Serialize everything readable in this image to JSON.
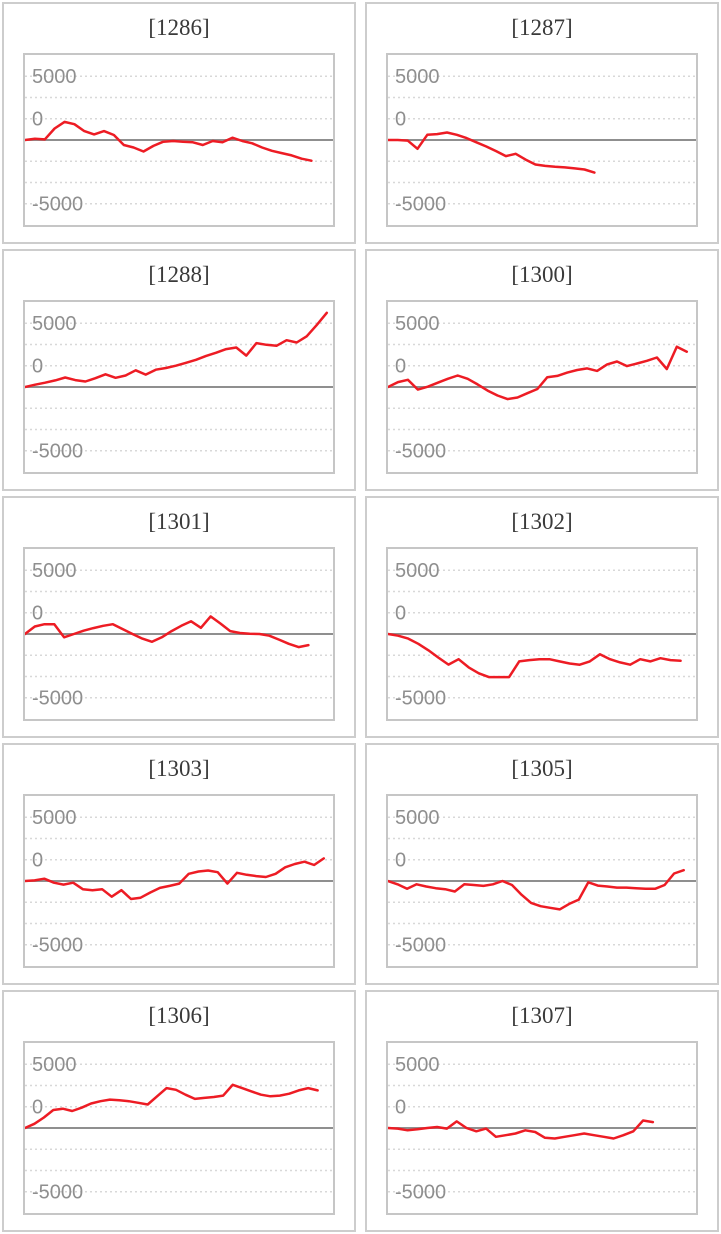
{
  "page": {
    "background": "#ffffff"
  },
  "colors": {
    "series_line": "#ed1c24",
    "zero_line": "#8f8f8f",
    "gridline": "#d8d8d8",
    "tick_label": "#8f8f8f",
    "title_text": "#3a3a3a",
    "panel_border": "#cdcdcd",
    "chart_border": "#c6c6c6"
  },
  "chart_data": [
    {
      "type": "line",
      "title": "[1286]",
      "ylabel": "",
      "xlabel": "",
      "y_ticks": [
        "5000",
        "0",
        "-5000"
      ],
      "y_tick_values": [
        5000,
        0,
        -5000
      ],
      "ylim": [
        -6667,
        6667
      ],
      "grid": "dotted-horizontal",
      "zero_baseline": true,
      "legend": "none",
      "x_span": 0.93,
      "values": [
        0,
        100,
        50,
        900,
        1420,
        1240,
        700,
        440,
        700,
        390,
        -390,
        -590,
        -900,
        -460,
        -130,
        -80,
        -130,
        -180,
        -390,
        -80,
        -180,
        180,
        -80,
        -260,
        -590,
        -850,
        -1030,
        -1210,
        -1470,
        -1620
      ]
    },
    {
      "type": "line",
      "title": "[1287]",
      "ylabel": "",
      "xlabel": "",
      "y_ticks": [
        "5000",
        "0",
        "-5000"
      ],
      "y_tick_values": [
        5000,
        0,
        -5000
      ],
      "ylim": [
        -6667,
        6667
      ],
      "grid": "dotted-horizontal",
      "zero_baseline": true,
      "legend": "none",
      "x_span": 0.67,
      "values": [
        0,
        0,
        -50,
        -690,
        410,
        460,
        590,
        410,
        150,
        -180,
        -510,
        -870,
        -1260,
        -1080,
        -1540,
        -1920,
        -2030,
        -2100,
        -2150,
        -2230,
        -2310,
        -2560
      ]
    },
    {
      "type": "line",
      "title": "[1288]",
      "ylabel": "",
      "xlabel": "",
      "y_ticks": [
        "5000",
        "0",
        "-5000"
      ],
      "y_tick_values": [
        5000,
        0,
        -5000
      ],
      "ylim": [
        -6667,
        6667
      ],
      "grid": "dotted-horizontal",
      "zero_baseline": true,
      "legend": "none",
      "x_span": 0.98,
      "values": [
        0,
        180,
        335,
        515,
        745,
        540,
        435,
        690,
        1000,
        720,
        900,
        1310,
        975,
        1360,
        1490,
        1670,
        1900,
        2130,
        2440,
        2690,
        2975,
        3100,
        2460,
        3440,
        3310,
        3230,
        3670,
        3490,
        3975,
        4870,
        5820
      ]
    },
    {
      "type": "line",
      "title": "[1300]",
      "ylabel": "",
      "xlabel": "",
      "y_ticks": [
        "5000",
        "0",
        "-5000"
      ],
      "y_tick_values": [
        5000,
        0,
        -5000
      ],
      "ylim": [
        -6667,
        6667
      ],
      "grid": "dotted-horizontal",
      "zero_baseline": true,
      "legend": "none",
      "x_span": 0.97,
      "values": [
        0,
        385,
        565,
        -205,
        25,
        335,
        640,
        900,
        640,
        205,
        -280,
        -665,
        -950,
        -820,
        -490,
        -155,
        770,
        870,
        1130,
        1330,
        1460,
        1260,
        1770,
        2000,
        1640,
        1845,
        2055,
        2310,
        1410,
        3160,
        2770
      ]
    },
    {
      "type": "line",
      "title": "[1301]",
      "ylabel": "",
      "xlabel": "",
      "y_ticks": [
        "5000",
        "0",
        "-5000"
      ],
      "y_tick_values": [
        5000,
        0,
        -5000
      ],
      "ylim": [
        -6667,
        6667
      ],
      "grid": "dotted-horizontal",
      "zero_baseline": true,
      "legend": "none",
      "x_span": 0.92,
      "values": [
        0,
        590,
        770,
        770,
        -260,
        0,
        255,
        460,
        640,
        770,
        385,
        0,
        -360,
        -615,
        -260,
        230,
        640,
        1000,
        490,
        1380,
        820,
        230,
        80,
        25,
        0,
        -130,
        -440,
        -770,
        -1030,
        -870
      ]
    },
    {
      "type": "line",
      "title": "[1302]",
      "ylabel": "",
      "xlabel": "",
      "y_ticks": [
        "5000",
        "0",
        "-5000"
      ],
      "y_tick_values": [
        5000,
        0,
        -5000
      ],
      "ylim": [
        -6667,
        6667
      ],
      "grid": "dotted-horizontal",
      "zero_baseline": true,
      "legend": "none",
      "x_span": 0.95,
      "values": [
        0,
        -130,
        -360,
        -770,
        -1280,
        -1850,
        -2400,
        -1980,
        -2620,
        -3080,
        -3380,
        -3380,
        -3380,
        -2150,
        -2050,
        -1980,
        -1980,
        -2150,
        -2310,
        -2410,
        -2150,
        -1590,
        -1980,
        -2230,
        -2410,
        -1980,
        -2150,
        -1900,
        -2050,
        -2100
      ]
    },
    {
      "type": "line",
      "title": "[1303]",
      "ylabel": "",
      "xlabel": "",
      "y_ticks": [
        "5000",
        "0",
        "-5000"
      ],
      "y_tick_values": [
        5000,
        0,
        -5000
      ],
      "ylim": [
        -6667,
        6667
      ],
      "grid": "dotted-horizontal",
      "zero_baseline": true,
      "legend": "none",
      "x_span": 0.97,
      "values": [
        0,
        50,
        180,
        -130,
        -280,
        -130,
        -640,
        -720,
        -640,
        -1230,
        -720,
        -1410,
        -1310,
        -900,
        -540,
        -385,
        -205,
        565,
        745,
        820,
        690,
        -205,
        640,
        485,
        385,
        310,
        565,
        1075,
        1330,
        1510,
        1255,
        1770
      ]
    },
    {
      "type": "line",
      "title": "[1305]",
      "ylabel": "",
      "xlabel": "",
      "y_ticks": [
        "5000",
        "0",
        "-5000"
      ],
      "y_tick_values": [
        5000,
        0,
        -5000
      ],
      "ylim": [
        -6667,
        6667
      ],
      "grid": "dotted-horizontal",
      "zero_baseline": true,
      "legend": "none",
      "x_span": 0.96,
      "values": [
        0,
        -255,
        -615,
        -255,
        -435,
        -565,
        -640,
        -820,
        -255,
        -310,
        -385,
        -255,
        0,
        -310,
        -1075,
        -1720,
        -1975,
        -2100,
        -2230,
        -1795,
        -1460,
        -100,
        -360,
        -435,
        -515,
        -515,
        -565,
        -615,
        -615,
        -310,
        590,
        845
      ]
    },
    {
      "type": "line",
      "title": "[1306]",
      "ylabel": "",
      "xlabel": "",
      "y_ticks": [
        "5000",
        "0",
        "-5000"
      ],
      "y_tick_values": [
        5000,
        0,
        -5000
      ],
      "ylim": [
        -6667,
        6667
      ],
      "grid": "dotted-horizontal",
      "zero_baseline": true,
      "legend": "none",
      "x_span": 0.95,
      "values": [
        0,
        330,
        820,
        1410,
        1510,
        1330,
        1590,
        1925,
        2100,
        2230,
        2180,
        2100,
        1975,
        1845,
        2490,
        3130,
        3000,
        2615,
        2280,
        2360,
        2435,
        2540,
        3385,
        3130,
        2870,
        2615,
        2490,
        2540,
        2690,
        2950,
        3130,
        2950
      ]
    },
    {
      "type": "line",
      "title": "[1307]",
      "ylabel": "",
      "xlabel": "",
      "y_ticks": [
        "5000",
        "0",
        "-5000"
      ],
      "y_tick_values": [
        5000,
        0,
        -5000
      ],
      "ylim": [
        -6667,
        6667
      ],
      "grid": "dotted-horizontal",
      "zero_baseline": true,
      "legend": "none",
      "x_span": 0.86,
      "values": [
        0,
        -50,
        -180,
        -100,
        0,
        80,
        -50,
        515,
        0,
        -255,
        -50,
        -690,
        -565,
        -435,
        -180,
        -310,
        -770,
        -820,
        -690,
        -565,
        -435,
        -565,
        -690,
        -820,
        -565,
        -255,
        590,
        460
      ]
    }
  ]
}
